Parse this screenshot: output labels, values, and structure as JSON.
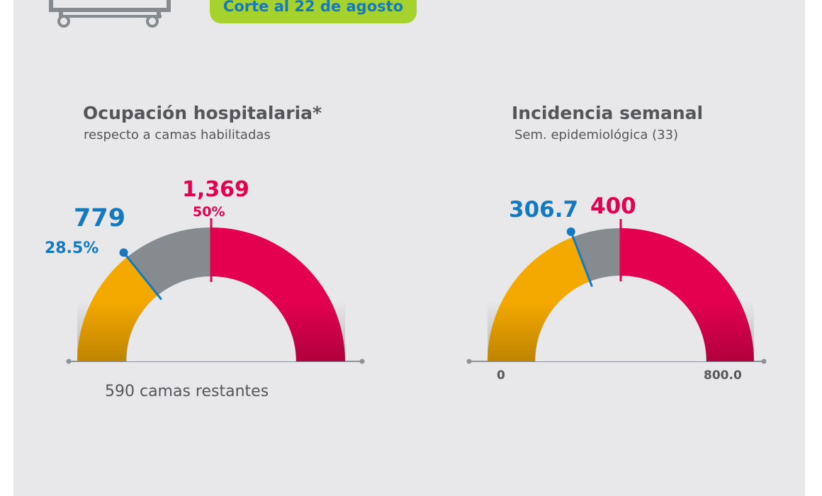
{
  "header": {
    "cut_date": "Corte al 22 de agosto"
  },
  "chart_data": [
    {
      "type": "gauge",
      "title": "Ocupación hospitalaria*",
      "subtitle": "respecto a camas habilitadas",
      "min": 0,
      "max": 2738,
      "value": 779,
      "value_label": "779",
      "value_percent_label": "28.5%",
      "threshold": 1369,
      "threshold_label": "1,369",
      "threshold_percent_label": "50%",
      "footnote": "590 camas restantes",
      "colors": {
        "filled": "#f4a900",
        "remaining_to_threshold": "#868b8f",
        "above_threshold": "#e3004f",
        "value_marker": "#1479be",
        "threshold_marker": "#e3004f"
      }
    },
    {
      "type": "gauge",
      "title": "Incidencia semanal",
      "subtitle": "Sem. epidemiológica (33)",
      "min": 0,
      "max": 800,
      "min_label": "0",
      "max_label": "800.0",
      "value": 306.7,
      "value_label": "306.7",
      "threshold": 400,
      "threshold_label": "400",
      "colors": {
        "filled": "#f4a900",
        "remaining_to_threshold": "#868b8f",
        "above_threshold": "#e3004f",
        "value_marker": "#1479be",
        "threshold_marker": "#e3004f"
      }
    }
  ]
}
